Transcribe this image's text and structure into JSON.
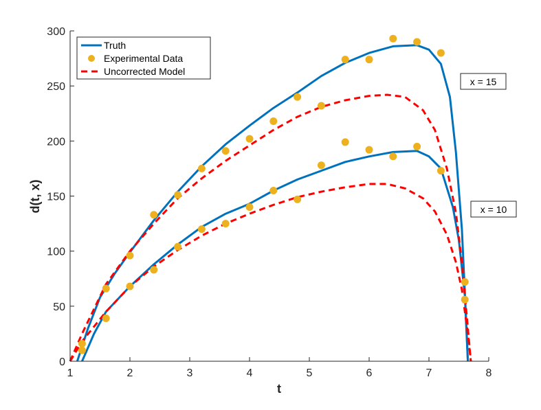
{
  "chart_data": {
    "type": "line",
    "title": "",
    "xlabel": "t",
    "ylabel": "d(t, x)",
    "xlim": [
      1,
      8
    ],
    "ylim": [
      0,
      300
    ],
    "xticks": [
      1,
      2,
      3,
      4,
      5,
      6,
      7,
      8
    ],
    "yticks": [
      0,
      50,
      100,
      150,
      200,
      250,
      300
    ],
    "grid": false,
    "legend": {
      "placement": "top-left",
      "entries": [
        "Truth",
        "Experimental Data",
        "Uncorrected Model"
      ]
    },
    "colors": {
      "truth": "#0072bd",
      "data": "#edb120",
      "model": "#ff0000"
    },
    "annotations": [
      {
        "text": "x = 15",
        "t": 7.9,
        "d": 254
      },
      {
        "text": "x = 10",
        "t": 8.0,
        "d": 137
      }
    ],
    "series": [
      {
        "name": "Truth",
        "group": "x = 15",
        "style": "solid",
        "x": [
          1.12,
          1.3,
          1.5,
          1.75,
          2,
          2.4,
          2.8,
          3.2,
          3.6,
          4.0,
          4.4,
          4.8,
          5.2,
          5.6,
          6.0,
          6.4,
          6.8,
          7.0,
          7.2,
          7.35,
          7.45,
          7.55,
          7.62,
          7.65
        ],
        "y": [
          0,
          30,
          58,
          80,
          99,
          128,
          154,
          177,
          197,
          214,
          230,
          244,
          259,
          271,
          280,
          286,
          287,
          283,
          270,
          240,
          190,
          120,
          40,
          0
        ]
      },
      {
        "name": "Truth",
        "group": "x = 10",
        "style": "solid",
        "x": [
          1.2,
          1.4,
          1.6,
          2.0,
          2.4,
          2.8,
          3.2,
          3.6,
          4.0,
          4.4,
          4.8,
          5.2,
          5.6,
          6.0,
          6.4,
          6.8,
          7.0,
          7.2,
          7.4,
          7.5,
          7.6,
          7.65
        ],
        "y": [
          0,
          25,
          45,
          68,
          88,
          106,
          122,
          134,
          143,
          155,
          165,
          173,
          181,
          186,
          190,
          191,
          186,
          175,
          140,
          110,
          60,
          0
        ]
      },
      {
        "name": "Uncorrected Model",
        "group": "x = 15",
        "style": "dashed",
        "x": [
          1.0,
          1.2,
          1.6,
          2.0,
          2.4,
          2.8,
          3.2,
          3.6,
          4.0,
          4.4,
          4.8,
          5.2,
          5.6,
          6.0,
          6.3,
          6.6,
          6.9,
          7.1,
          7.3,
          7.45,
          7.55,
          7.65,
          7.7
        ],
        "y": [
          0,
          25,
          70,
          100,
          125,
          148,
          166,
          182,
          196,
          210,
          222,
          231,
          237,
          241,
          242,
          240,
          228,
          210,
          175,
          135,
          90,
          30,
          0
        ]
      },
      {
        "name": "Uncorrected Model",
        "group": "x = 10",
        "style": "dashed",
        "x": [
          1.0,
          1.2,
          1.6,
          2.0,
          2.4,
          2.8,
          3.2,
          3.6,
          4.0,
          4.4,
          4.8,
          5.2,
          5.6,
          6.0,
          6.3,
          6.6,
          6.9,
          7.1,
          7.3,
          7.45,
          7.55,
          7.65,
          7.7
        ],
        "y": [
          0,
          18,
          45,
          68,
          86,
          101,
          114,
          125,
          134,
          142,
          149,
          154,
          158,
          161,
          161,
          157,
          148,
          136,
          115,
          90,
          65,
          25,
          0
        ]
      },
      {
        "name": "Experimental Data",
        "group": "x = 15",
        "style": "markers",
        "x": [
          1.2,
          1.6,
          2.0,
          2.4,
          2.8,
          3.2,
          3.6,
          4.0,
          4.4,
          4.8,
          5.2,
          5.6,
          6.0,
          6.4,
          6.8,
          7.2,
          7.6
        ],
        "y": [
          16,
          66,
          96,
          133,
          151,
          175,
          191,
          202,
          218,
          240,
          232,
          274,
          274,
          293,
          290,
          280,
          72
        ]
      },
      {
        "name": "Experimental Data",
        "group": "x = 10",
        "style": "markers",
        "x": [
          1.2,
          1.6,
          2.0,
          2.4,
          2.8,
          3.2,
          3.6,
          4.0,
          4.4,
          4.8,
          5.2,
          5.6,
          6.0,
          6.4,
          6.8,
          7.2,
          7.6
        ],
        "y": [
          10,
          39,
          68,
          83,
          104,
          120,
          125,
          140,
          155,
          147,
          178,
          199,
          192,
          186,
          195,
          173,
          56
        ]
      }
    ]
  }
}
